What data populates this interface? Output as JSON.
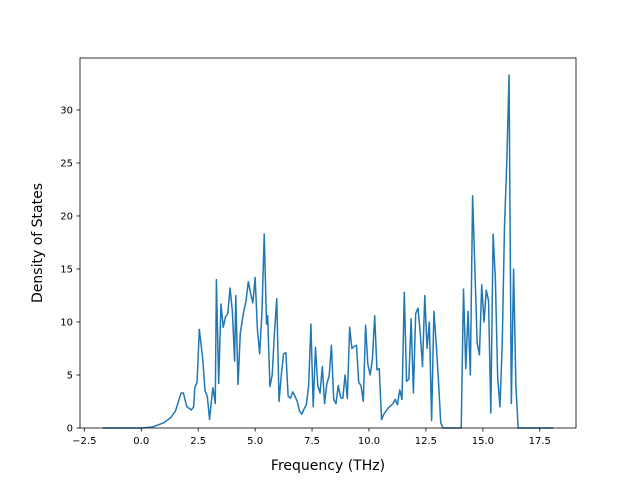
{
  "chart_data": {
    "type": "line",
    "xlabel": "Frequency (THz)",
    "ylabel": "Density of States",
    "x": [
      -1.7,
      0,
      0.5,
      1.0,
      1.3,
      1.5,
      1.75,
      1.85,
      2.0,
      2.2,
      2.3,
      2.35,
      2.45,
      2.55,
      2.7,
      2.8,
      2.9,
      3.0,
      3.1,
      3.15,
      3.25,
      3.3,
      3.4,
      3.5,
      3.6,
      3.7,
      3.8,
      3.9,
      4.0,
      4.1,
      4.15,
      4.25,
      4.35,
      4.5,
      4.6,
      4.7,
      4.8,
      4.9,
      5.0,
      5.1,
      5.2,
      5.3,
      5.4,
      5.5,
      5.55,
      5.65,
      5.75,
      5.85,
      5.95,
      6.05,
      6.15,
      6.25,
      6.35,
      6.45,
      6.55,
      6.65,
      6.75,
      6.85,
      6.95,
      7.05,
      7.15,
      7.25,
      7.35,
      7.45,
      7.55,
      7.65,
      7.75,
      7.85,
      7.95,
      8.05,
      8.15,
      8.25,
      8.35,
      8.45,
      8.55,
      8.65,
      8.75,
      8.85,
      8.95,
      9.05,
      9.15,
      9.25,
      9.35,
      9.45,
      9.55,
      9.65,
      9.75,
      9.85,
      9.95,
      10.05,
      10.15,
      10.25,
      10.35,
      10.45,
      10.55,
      10.65,
      10.75,
      10.85,
      10.95,
      11.05,
      11.15,
      11.25,
      11.35,
      11.45,
      11.55,
      11.65,
      11.75,
      11.85,
      11.95,
      12.05,
      12.15,
      12.25,
      12.35,
      12.45,
      12.55,
      12.65,
      12.75,
      12.85,
      12.95,
      13.05,
      13.15,
      13.25,
      14.05,
      14.15,
      14.25,
      14.35,
      14.45,
      14.55,
      14.65,
      14.75,
      14.85,
      14.95,
      15.05,
      15.15,
      15.25,
      15.35,
      15.45,
      15.55,
      15.65,
      15.75,
      15.85,
      15.95,
      16.05,
      16.15,
      16.25,
      16.35,
      16.45,
      16.55,
      18.1
    ],
    "series": [
      {
        "color": "#1f77b4",
        "values": [
          0,
          0,
          0.1,
          0.5,
          1.0,
          1.6,
          3.3,
          3.3,
          2.0,
          1.7,
          2.0,
          3.8,
          4.3,
          9.3,
          6.5,
          3.5,
          3.0,
          0.8,
          3.0,
          3.8,
          2.3,
          14.0,
          4.2,
          11.7,
          9.5,
          10.5,
          10.8,
          13.2,
          11.0,
          6.3,
          12.5,
          4.1,
          9.0,
          11.0,
          12.0,
          13.8,
          12.7,
          11.8,
          14.2,
          9.3,
          7.0,
          11.0,
          18.3,
          9.8,
          10.6,
          3.9,
          5.0,
          9.0,
          12.2,
          2.5,
          5.0,
          7.0,
          7.1,
          3.0,
          2.8,
          3.4,
          3.0,
          2.5,
          1.6,
          1.3,
          1.8,
          2.2,
          4.0,
          9.8,
          2.0,
          7.6,
          4.0,
          3.3,
          5.8,
          2.3,
          4.2,
          4.9,
          7.8,
          2.7,
          2.3,
          4.0,
          2.9,
          2.8,
          5.0,
          2.8,
          9.5,
          7.5,
          7.7,
          7.8,
          4.3,
          4.0,
          2.5,
          9.7,
          6.0,
          5.0,
          6.5,
          10.6,
          5.5,
          5.6,
          0.8,
          1.3,
          1.6,
          1.9,
          2.1,
          2.3,
          2.7,
          2.2,
          3.6,
          2.7,
          12.8,
          4.4,
          4.6,
          10.3,
          3.3,
          10.8,
          11.3,
          9.0,
          5.8,
          12.5,
          7.5,
          10.0,
          0.7,
          11.0,
          8.0,
          4.5,
          0.5,
          0,
          0,
          13.1,
          5.6,
          11.0,
          5.0,
          21.9,
          15.0,
          8.0,
          6.9,
          13.5,
          10.0,
          13.0,
          12.0,
          1.4,
          18.3,
          14.0,
          4.8,
          2.0,
          7.8,
          19.0,
          25.0,
          33.3,
          2.3,
          15.0,
          4.0,
          0,
          0
        ]
      }
    ],
    "xlim": [
      -2.69,
      19.09
    ],
    "ylim": [
      0,
      34.9
    ],
    "xticks": [
      {
        "value": -2.5,
        "label": "−2.5"
      },
      {
        "value": 0,
        "label": "0.0"
      },
      {
        "value": 2.5,
        "label": "2.5"
      },
      {
        "value": 5,
        "label": "5.0"
      },
      {
        "value": 7.5,
        "label": "7.5"
      },
      {
        "value": 10,
        "label": "10.0"
      },
      {
        "value": 12.5,
        "label": "12.5"
      },
      {
        "value": 15,
        "label": "15.0"
      },
      {
        "value": 17.5,
        "label": "17.5"
      }
    ],
    "yticks": [
      0,
      5,
      10,
      15,
      20,
      25,
      30
    ]
  }
}
